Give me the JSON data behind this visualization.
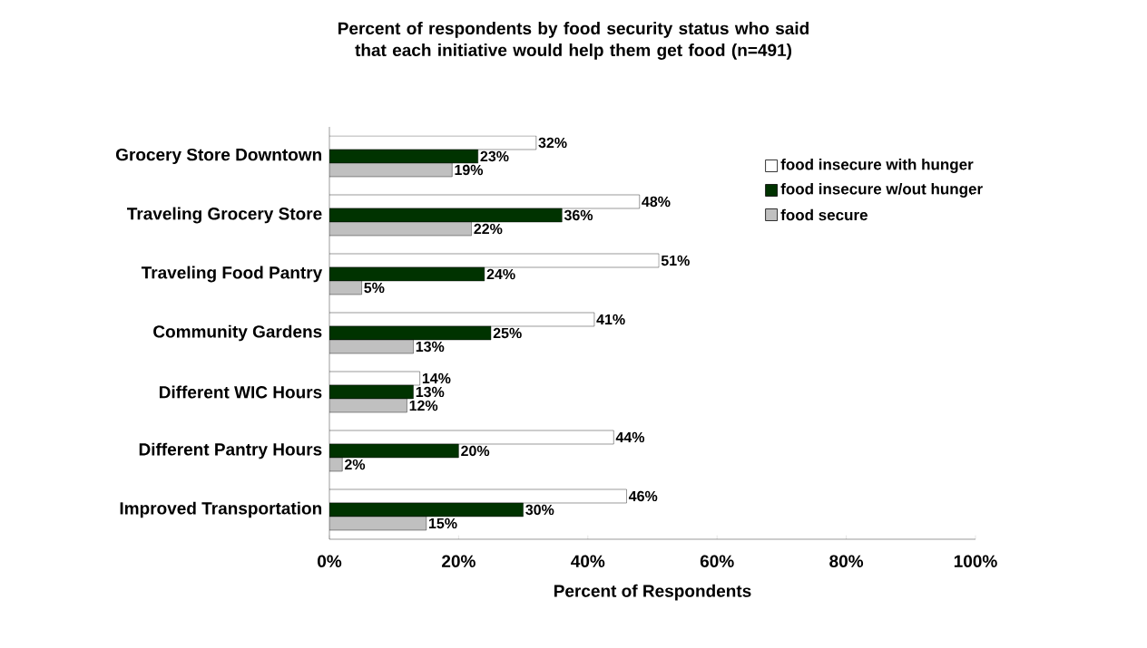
{
  "chart_data": {
    "type": "bar",
    "orientation": "horizontal",
    "title": "Percent of respondents by food security status who said that each initiative would help them get food (n=491)",
    "xlabel": "Percent of Respondents",
    "categories": [
      "Grocery Store Downtown",
      "Traveling Grocery Store",
      "Traveling Food Pantry",
      "Community Gardens",
      "Different WIC Hours",
      "Different Pantry Hours",
      "Improved Transportation"
    ],
    "series": [
      {
        "name": "food insecure with hunger",
        "color": "#ffffff",
        "values": [
          32,
          48,
          51,
          41,
          14,
          44,
          46
        ],
        "value_labels": [
          "32%",
          "48%",
          "51%",
          "41%",
          "14%",
          "44%",
          "46%"
        ]
      },
      {
        "name": "food insecure w/out hunger",
        "color": "#003300",
        "values": [
          23,
          36,
          24,
          25,
          13,
          20,
          30
        ],
        "value_labels": [
          "23%",
          "36%",
          "24%",
          "25%",
          "13%",
          "20%",
          "30%"
        ]
      },
      {
        "name": "food secure",
        "color": "#c0c0c0",
        "values": [
          19,
          22,
          5,
          13,
          12,
          2,
          15
        ],
        "value_labels": [
          "19%",
          "22%",
          "5%",
          "13%",
          "12%",
          "2%",
          "15%"
        ]
      }
    ],
    "xlim": [
      0,
      100
    ],
    "xticks": [
      {
        "value": 0,
        "label": "0%"
      },
      {
        "value": 20,
        "label": "20%"
      },
      {
        "value": 40,
        "label": "40%"
      },
      {
        "value": 60,
        "label": "60%"
      },
      {
        "value": 80,
        "label": "80%"
      },
      {
        "value": 100,
        "label": "100%"
      }
    ],
    "legend": "right"
  }
}
